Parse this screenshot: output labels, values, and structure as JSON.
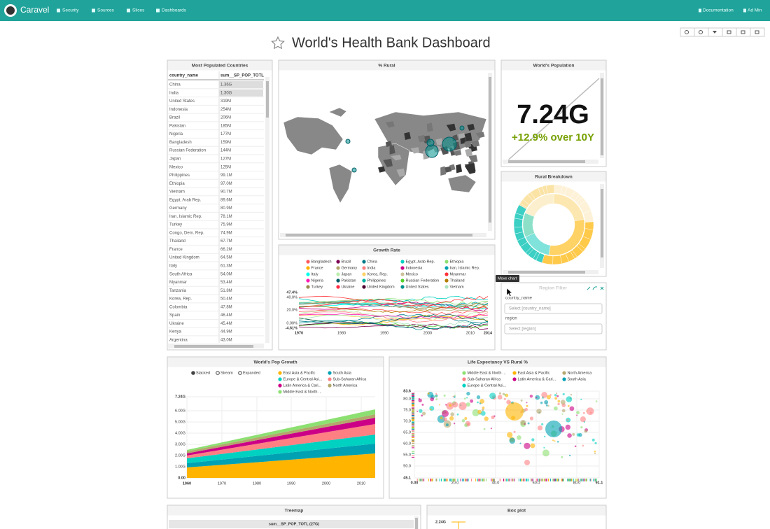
{
  "navbar": {
    "brand": "Caravel",
    "items": [
      "Security",
      "Sources",
      "Slices",
      "Dashboards"
    ],
    "right": [
      "Documentation",
      "Ad Min"
    ]
  },
  "header": {
    "title": "World's Health Bank Dashboard"
  },
  "tooltip": "Move chart",
  "panels": {
    "table": {
      "title": "Most Populated Countries",
      "columns": [
        "country_name",
        "sum__SP_POP_TOTL"
      ],
      "rows": [
        [
          "China",
          "1.36G"
        ],
        [
          "India",
          "1.30G"
        ],
        [
          "United States",
          "319M"
        ],
        [
          "Indonesia",
          "254M"
        ],
        [
          "Brazil",
          "206M"
        ],
        [
          "Pakistan",
          "185M"
        ],
        [
          "Nigeria",
          "177M"
        ],
        [
          "Bangladesh",
          "159M"
        ],
        [
          "Russian Federation",
          "144M"
        ],
        [
          "Japan",
          "127M"
        ],
        [
          "Mexico",
          "125M"
        ],
        [
          "Philippines",
          "99.1M"
        ],
        [
          "Ethiopia",
          "97.0M"
        ],
        [
          "Vietnam",
          "90.7M"
        ],
        [
          "Egypt, Arab Rep.",
          "89.6M"
        ],
        [
          "Germany",
          "80.9M"
        ],
        [
          "Iran, Islamic Rep.",
          "78.1M"
        ],
        [
          "Turkey",
          "75.9M"
        ],
        [
          "Congo, Dem. Rep.",
          "74.9M"
        ],
        [
          "Thailand",
          "67.7M"
        ],
        [
          "France",
          "66.2M"
        ],
        [
          "United Kingdom",
          "64.5M"
        ],
        [
          "Italy",
          "61.3M"
        ],
        [
          "South Africa",
          "54.0M"
        ],
        [
          "Myanmar",
          "53.4M"
        ],
        [
          "Tanzania",
          "51.8M"
        ],
        [
          "Korea, Rep.",
          "50.4M"
        ],
        [
          "Colombia",
          "47.8M"
        ],
        [
          "Spain",
          "46.4M"
        ],
        [
          "Ukraine",
          "45.4M"
        ],
        [
          "Kenya",
          "44.9M"
        ],
        [
          "Argentina",
          "43.0M"
        ]
      ]
    },
    "rural_map": {
      "title": "% Rural"
    },
    "population": {
      "title": "World's Population",
      "value": "7.24G",
      "subheader": "+12.9% over 10Y"
    },
    "rural_breakdown": {
      "title": "Rural Breakdown"
    },
    "growth_rate": {
      "title": "Growth Rate",
      "legend": [
        {
          "name": "Bangladesh",
          "color": "#ff5a5f"
        },
        {
          "name": "Brazil",
          "color": "#7b0051"
        },
        {
          "name": "China",
          "color": "#007a87"
        },
        {
          "name": "Egypt, Arab Rep.",
          "color": "#00d1c1"
        },
        {
          "name": "Ethiopia",
          "color": "#8ce071"
        },
        {
          "name": "France",
          "color": "#ffb400"
        },
        {
          "name": "Germany",
          "color": "#b4a76c"
        },
        {
          "name": "India",
          "color": "#ff8083"
        },
        {
          "name": "Indonesia",
          "color": "#cc0086"
        },
        {
          "name": "Iran, Islamic Rep.",
          "color": "#00a1b3"
        },
        {
          "name": "Italy",
          "color": "#00ffeb"
        },
        {
          "name": "Japan",
          "color": "#bbedab"
        },
        {
          "name": "Korea, Rep.",
          "color": "#ffd266"
        },
        {
          "name": "Mexico",
          "color": "#cbc29a"
        },
        {
          "name": "Myanmar",
          "color": "#ff3339"
        },
        {
          "name": "Nigeria",
          "color": "#ff1ab1"
        },
        {
          "name": "Pakistan",
          "color": "#005c66"
        },
        {
          "name": "Philippines",
          "color": "#00b3a5"
        },
        {
          "name": "Russian Federation",
          "color": "#55d12e"
        },
        {
          "name": "Thailand",
          "color": "#b37e00"
        },
        {
          "name": "Turkey",
          "color": "#988b4e"
        },
        {
          "name": "Ukraine",
          "color": "#ff2d43"
        },
        {
          "name": "United Kingdom",
          "color": "#4d0033"
        },
        {
          "name": "United States",
          "color": "#00918e"
        },
        {
          "name": "Vietnam",
          "color": "#aae3bf"
        }
      ],
      "yticks": [
        "47.4%",
        "40.0%",
        "20.0%",
        "0.00%",
        "-4.61%"
      ],
      "xticks": [
        "1970",
        "1980",
        "1990",
        "2000",
        "2010",
        "2014"
      ]
    },
    "region_filter": {
      "title": "Region Filter",
      "fields": [
        {
          "label": "country_name",
          "placeholder": "Select [country_name]"
        },
        {
          "label": "region",
          "placeholder": "Select [region]"
        }
      ]
    },
    "pop_growth": {
      "title": "World's Pop Growth",
      "controls": [
        "Stacked",
        "Stream",
        "Expanded"
      ],
      "legend": [
        {
          "name": "East Asia & Pacific",
          "color": "#ffb400"
        },
        {
          "name": "South Asia",
          "color": "#00a1b3"
        },
        {
          "name": "Europe & Central Asi...",
          "color": "#00d1c1"
        },
        {
          "name": "Sub-Saharan Africa",
          "color": "#ff8083"
        },
        {
          "name": "Latin America & Cari...",
          "color": "#cc0086"
        },
        {
          "name": "North America",
          "color": "#b4a76c"
        },
        {
          "name": "Middle East & North ...",
          "color": "#8ce071"
        }
      ],
      "yticks": [
        "7.24G",
        "6.00G",
        "5.00G",
        "4.00G",
        "3.00G",
        "2.00G",
        "1.00G",
        "0.00"
      ],
      "xticks": [
        "1960",
        "1970",
        "1980",
        "1990",
        "2000",
        "2010"
      ]
    },
    "life_expectancy": {
      "title": "Life Expectancy VS Rural %",
      "legend": [
        {
          "name": "Middle East & North ...",
          "color": "#8ce071"
        },
        {
          "name": "East Asia & Pacific",
          "color": "#ffb400"
        },
        {
          "name": "North America",
          "color": "#b4a76c"
        },
        {
          "name": "Sub-Saharan Africa",
          "color": "#ff8083"
        },
        {
          "name": "Latin America & Cari...",
          "color": "#cc0086"
        },
        {
          "name": "South Asia",
          "color": "#00a1b3"
        },
        {
          "name": "Europe & Central Asi...",
          "color": "#00d1c1"
        }
      ],
      "yticks": [
        "83.6",
        "80.0",
        "75.0",
        "70.0",
        "65.0",
        "60.0",
        "55.0",
        "50.0",
        "45.1"
      ],
      "xticks": [
        "0.00",
        "20.0",
        "40.0",
        "60.0",
        "80.0",
        "91.1"
      ]
    },
    "treemap": {
      "title": "Treemap",
      "header": "sum__SP_POP_TOTL (27G)"
    },
    "box_plot": {
      "title": "Box plot",
      "yticks": [
        "2.24G"
      ]
    }
  }
}
